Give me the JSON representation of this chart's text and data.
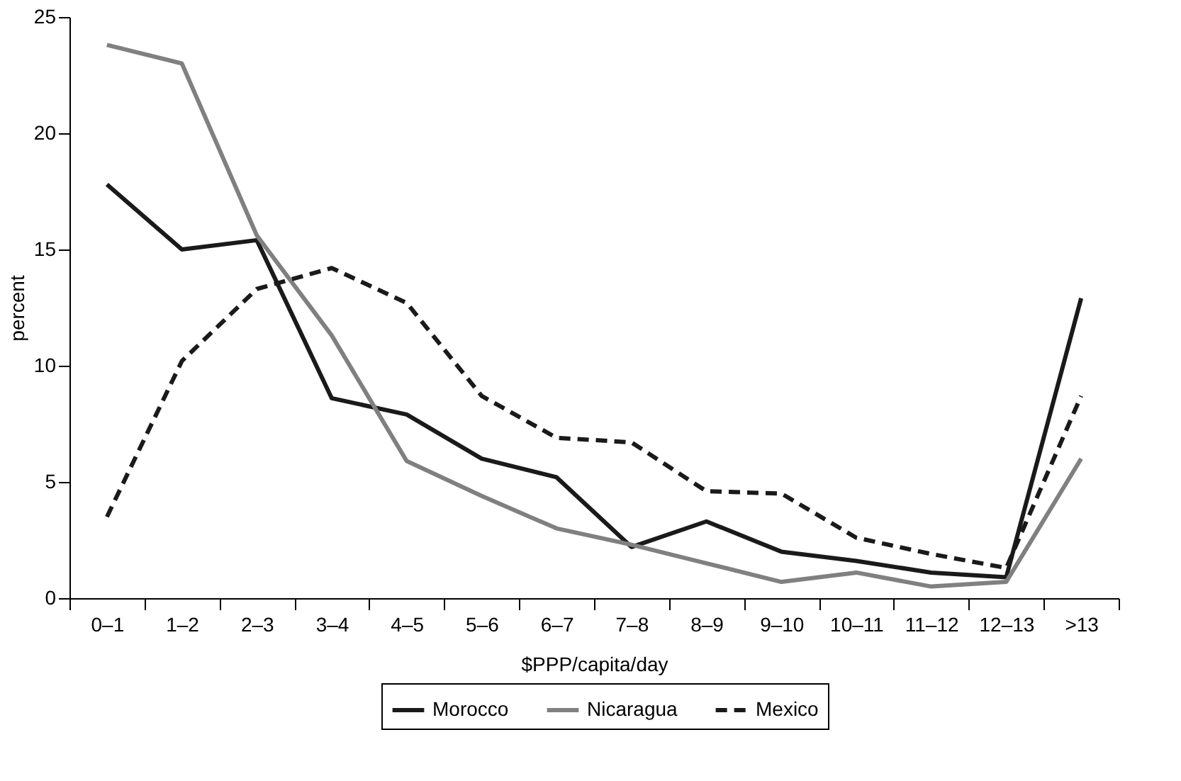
{
  "chart_data": {
    "type": "line",
    "xlabel": "$PPP/capita/day",
    "ylabel": "percent",
    "categories": [
      "0–1",
      "1–2",
      "2–3",
      "3–4",
      "4–5",
      "5–6",
      "6–7",
      "7–8",
      "8–9",
      "9–10",
      "10–11",
      "11–12",
      "12–13",
      ">13"
    ],
    "series": [
      {
        "name": "Morocco",
        "color": "#1a1a1a",
        "line_style": "solid",
        "values": [
          17.8,
          15.0,
          15.4,
          8.6,
          7.9,
          6.0,
          5.2,
          2.2,
          3.3,
          2.0,
          1.6,
          1.1,
          0.9,
          12.9
        ]
      },
      {
        "name": "Nicaragua",
        "color": "#808080",
        "line_style": "solid",
        "values": [
          23.8,
          23.0,
          15.6,
          11.3,
          5.9,
          4.4,
          3.0,
          2.3,
          1.5,
          0.7,
          1.1,
          0.5,
          0.7,
          6.0
        ]
      },
      {
        "name": "Mexico",
        "color": "#1a1a1a",
        "line_style": "dashed",
        "values": [
          3.5,
          10.2,
          13.3,
          14.2,
          12.7,
          8.7,
          6.9,
          6.7,
          4.6,
          4.5,
          2.6,
          1.9,
          1.3,
          8.7
        ]
      }
    ],
    "ylim": [
      0,
      25
    ],
    "yticks": [
      0,
      5,
      10,
      15,
      20,
      25
    ],
    "grid": false,
    "legend": "bottom",
    "marker": "none"
  }
}
